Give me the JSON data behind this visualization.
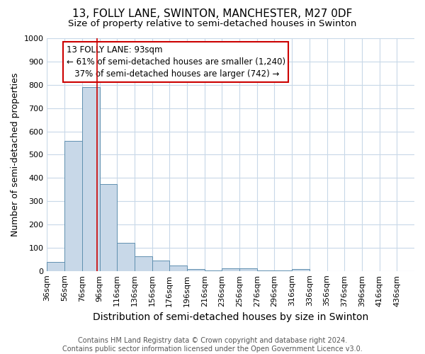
{
  "title": "13, FOLLY LANE, SWINTON, MANCHESTER, M27 0DF",
  "subtitle": "Size of property relative to semi-detached houses in Swinton",
  "xlabel": "Distribution of semi-detached houses by size in Swinton",
  "ylabel": "Number of semi-detached properties",
  "footnote": "Contains HM Land Registry data © Crown copyright and database right 2024.\nContains public sector information licensed under the Open Government Licence v3.0.",
  "bin_starts": [
    36,
    56,
    76,
    96,
    116,
    136,
    156,
    176,
    196,
    216,
    236,
    256,
    276,
    296,
    316,
    336,
    356,
    376,
    396,
    416
  ],
  "bin_width": 20,
  "bar_heights": [
    40,
    560,
    790,
    375,
    120,
    62,
    45,
    25,
    10,
    3,
    12,
    12,
    3,
    3,
    10,
    0,
    0,
    0,
    0,
    0
  ],
  "bar_color": "#c8d8e8",
  "bar_edge_color": "#6090b0",
  "property_size": 93,
  "property_line_color": "#cc0000",
  "annotation_line1": "13 FOLLY LANE: 93sqm",
  "annotation_line2": "← 61% of semi-detached houses are smaller (1,240)",
  "annotation_line3": "   37% of semi-detached houses are larger (742) →",
  "annotation_box_color": "#ffffff",
  "annotation_box_edge_color": "#cc0000",
  "ylim": [
    0,
    1000
  ],
  "xlim_start": 36,
  "xlim_end": 456,
  "title_fontsize": 11,
  "subtitle_fontsize": 9.5,
  "xlabel_fontsize": 10,
  "ylabel_fontsize": 9,
  "tick_fontsize": 8,
  "annotation_fontsize": 8.5,
  "footnote_fontsize": 7,
  "background_color": "#ffffff",
  "grid_color": "#c8d8e8"
}
